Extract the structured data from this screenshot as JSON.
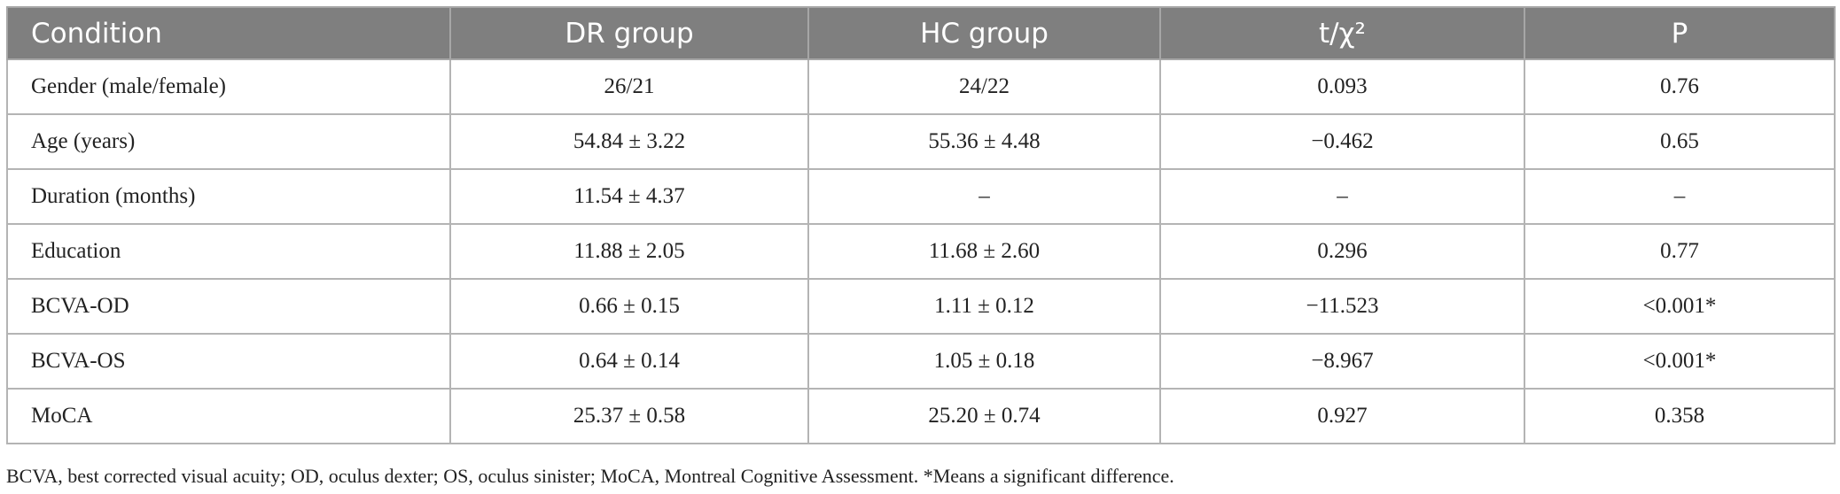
{
  "table": {
    "header": [
      "Condition",
      "DR group",
      "HC group",
      "t/χ²",
      "P"
    ],
    "rows": [
      [
        "Gender (male/female)",
        "26/21",
        "24/22",
        "0.093",
        "0.76"
      ],
      [
        "Age (years)",
        "54.84 ± 3.22",
        "55.36 ± 4.48",
        "−0.462",
        "0.65"
      ],
      [
        "Duration (months)",
        "11.54 ± 4.37",
        "–",
        "–",
        "–"
      ],
      [
        "Education",
        "11.88 ± 2.05",
        "11.68 ± 2.60",
        "0.296",
        "0.77"
      ],
      [
        "BCVA-OD",
        "0.66 ± 0.15",
        "1.11 ± 0.12",
        "−11.523",
        "<0.001*"
      ],
      [
        "BCVA-OS",
        "0.64 ± 0.14",
        "1.05 ± 0.18",
        "−8.967",
        "<0.001*"
      ],
      [
        "MoCA",
        "25.37 ± 0.58",
        "25.20 ± 0.74",
        "0.927",
        "0.358"
      ]
    ]
  },
  "footnote": "BCVA, best corrected visual acuity; OD, oculus dexter; OS, oculus sinister; MoCA, Montreal Cognitive Assessment. *Means a significant difference."
}
